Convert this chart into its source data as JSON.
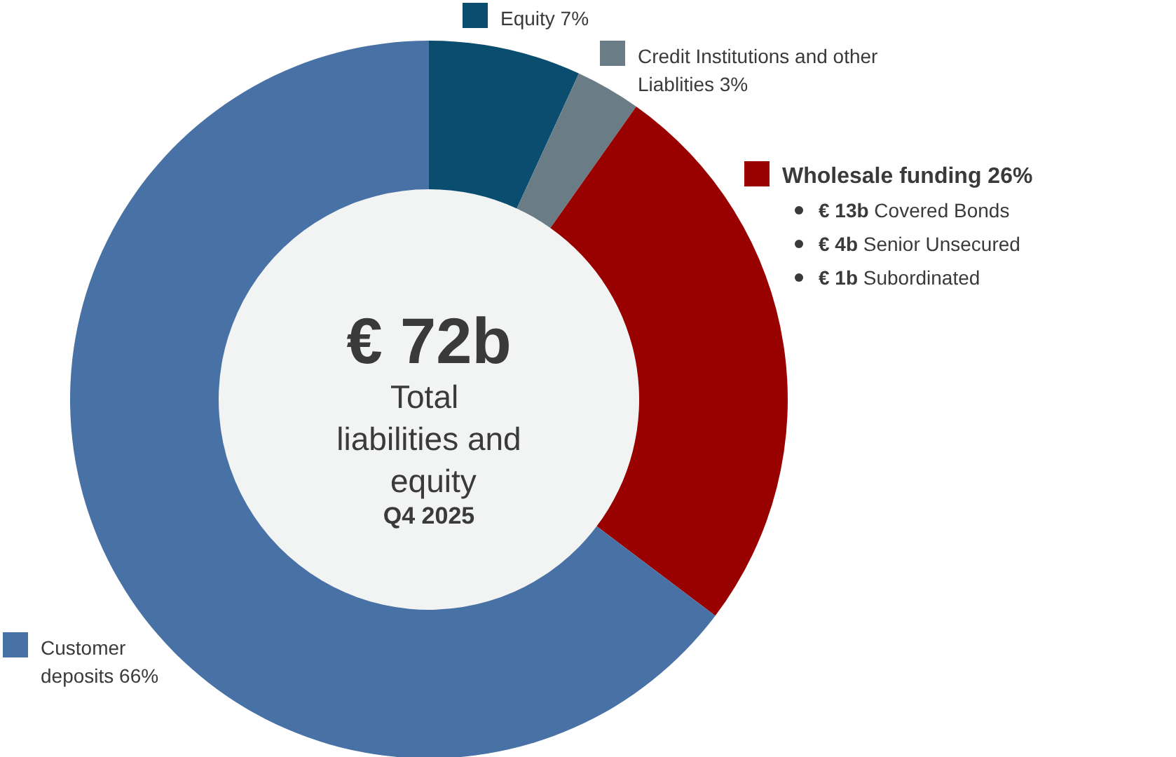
{
  "chart_data": {
    "type": "donut",
    "categories": [
      "Equity",
      "Credit Institutions and other Liablities",
      "Wholesale funding",
      "Customer deposits"
    ],
    "values": [
      7,
      3,
      26,
      66
    ],
    "value_labels": [
      "7%",
      "3%",
      "26%",
      "66%"
    ],
    "colors": [
      "#0b4d6e",
      "#6a7d86",
      "#990000",
      "#4871a6"
    ],
    "legend": "right",
    "title": "€ 72b",
    "subtitle": "Total liabilities and equity",
    "annotations": [
      "Q4 2025",
      "€ 13b Covered Bonds",
      "€ 4b Senior Unsecured",
      "€ 1b Subordinated"
    ]
  }
}
